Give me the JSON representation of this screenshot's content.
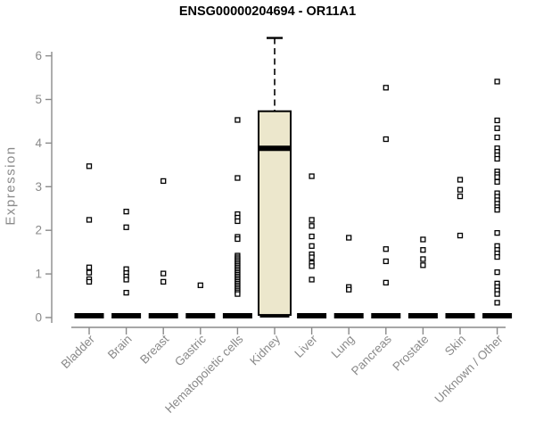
{
  "figure": {
    "title": "ENSG00000204694 - OR11A1",
    "background_color": "#ffffff"
  },
  "chart_data": {
    "type": "boxplot-scatter",
    "title": "ENSG00000204694 - OR11A1",
    "xlabel": "",
    "ylabel": "Expression",
    "ylim": [
      0,
      6
    ],
    "yticks": [
      0,
      1,
      2,
      3,
      4,
      5,
      6
    ],
    "grid": false,
    "legend": false,
    "axis_color": "#8a8a8a",
    "point_color": "#000000",
    "point_fill": "#ffffff",
    "box_fill": "#ece7cc",
    "box_border": "#000000",
    "categories": [
      "Bladder",
      "Brain",
      "Breast",
      "Gastric",
      "Hematopoietic cells",
      "Kidney",
      "Liver",
      "Lung",
      "Pancreas",
      "Prostate",
      "Skin",
      "Unknown / Other"
    ],
    "series": [
      {
        "name": "Bladder",
        "zero_bar": true,
        "points": [
          3.47,
          2.24,
          1.15,
          1.03,
          0.88,
          0.82
        ]
      },
      {
        "name": "Brain",
        "zero_bar": true,
        "points": [
          2.43,
          2.07,
          1.11,
          1.02,
          0.94,
          0.87,
          0.57
        ]
      },
      {
        "name": "Breast",
        "zero_bar": true,
        "points": [
          3.13,
          1.01,
          0.82
        ]
      },
      {
        "name": "Gastric",
        "zero_bar": true,
        "points": [
          0.74
        ]
      },
      {
        "name": "Hematopoietic cells",
        "zero_bar": true,
        "points": [
          4.53,
          3.2,
          2.37,
          2.29,
          2.21,
          1.85,
          1.8,
          1.42,
          1.38,
          1.34,
          1.3,
          1.26,
          1.22,
          1.18,
          1.14,
          1.1,
          1.06,
          1.02,
          0.98,
          0.94,
          0.9,
          0.86,
          0.82,
          0.78,
          0.74,
          0.7,
          0.66,
          0.62,
          0.58,
          0.54
        ]
      },
      {
        "name": "Kidney",
        "zero_bar": true,
        "points": [],
        "box": {
          "whisker_high": 6.41,
          "q3": 4.73,
          "median": 3.88,
          "q1": 0.06
        }
      },
      {
        "name": "Liver",
        "zero_bar": true,
        "points": [
          3.24,
          2.24,
          2.1,
          1.86,
          1.64,
          1.45,
          1.38,
          1.25,
          1.18,
          0.87
        ]
      },
      {
        "name": "Lung",
        "zero_bar": true,
        "points": [
          1.83,
          0.7,
          0.64
        ]
      },
      {
        "name": "Pancreas",
        "zero_bar": true,
        "points": [
          5.27,
          4.09,
          1.57,
          1.29,
          0.8
        ]
      },
      {
        "name": "Prostate",
        "zero_bar": true,
        "points": [
          1.79,
          1.55,
          1.34,
          1.2
        ]
      },
      {
        "name": "Skin",
        "zero_bar": true,
        "points": [
          3.16,
          2.93,
          2.78,
          1.88
        ]
      },
      {
        "name": "Unknown / Other",
        "zero_bar": true,
        "points": [
          5.41,
          4.52,
          4.34,
          4.13,
          3.88,
          3.8,
          3.72,
          3.64,
          3.35,
          3.28,
          3.22,
          3.11,
          2.85,
          2.77,
          2.69,
          2.61,
          2.53,
          2.47,
          1.94,
          1.64,
          1.55,
          1.47,
          1.39,
          1.04,
          0.78,
          0.7,
          0.62,
          0.54,
          0.34
        ]
      }
    ]
  }
}
